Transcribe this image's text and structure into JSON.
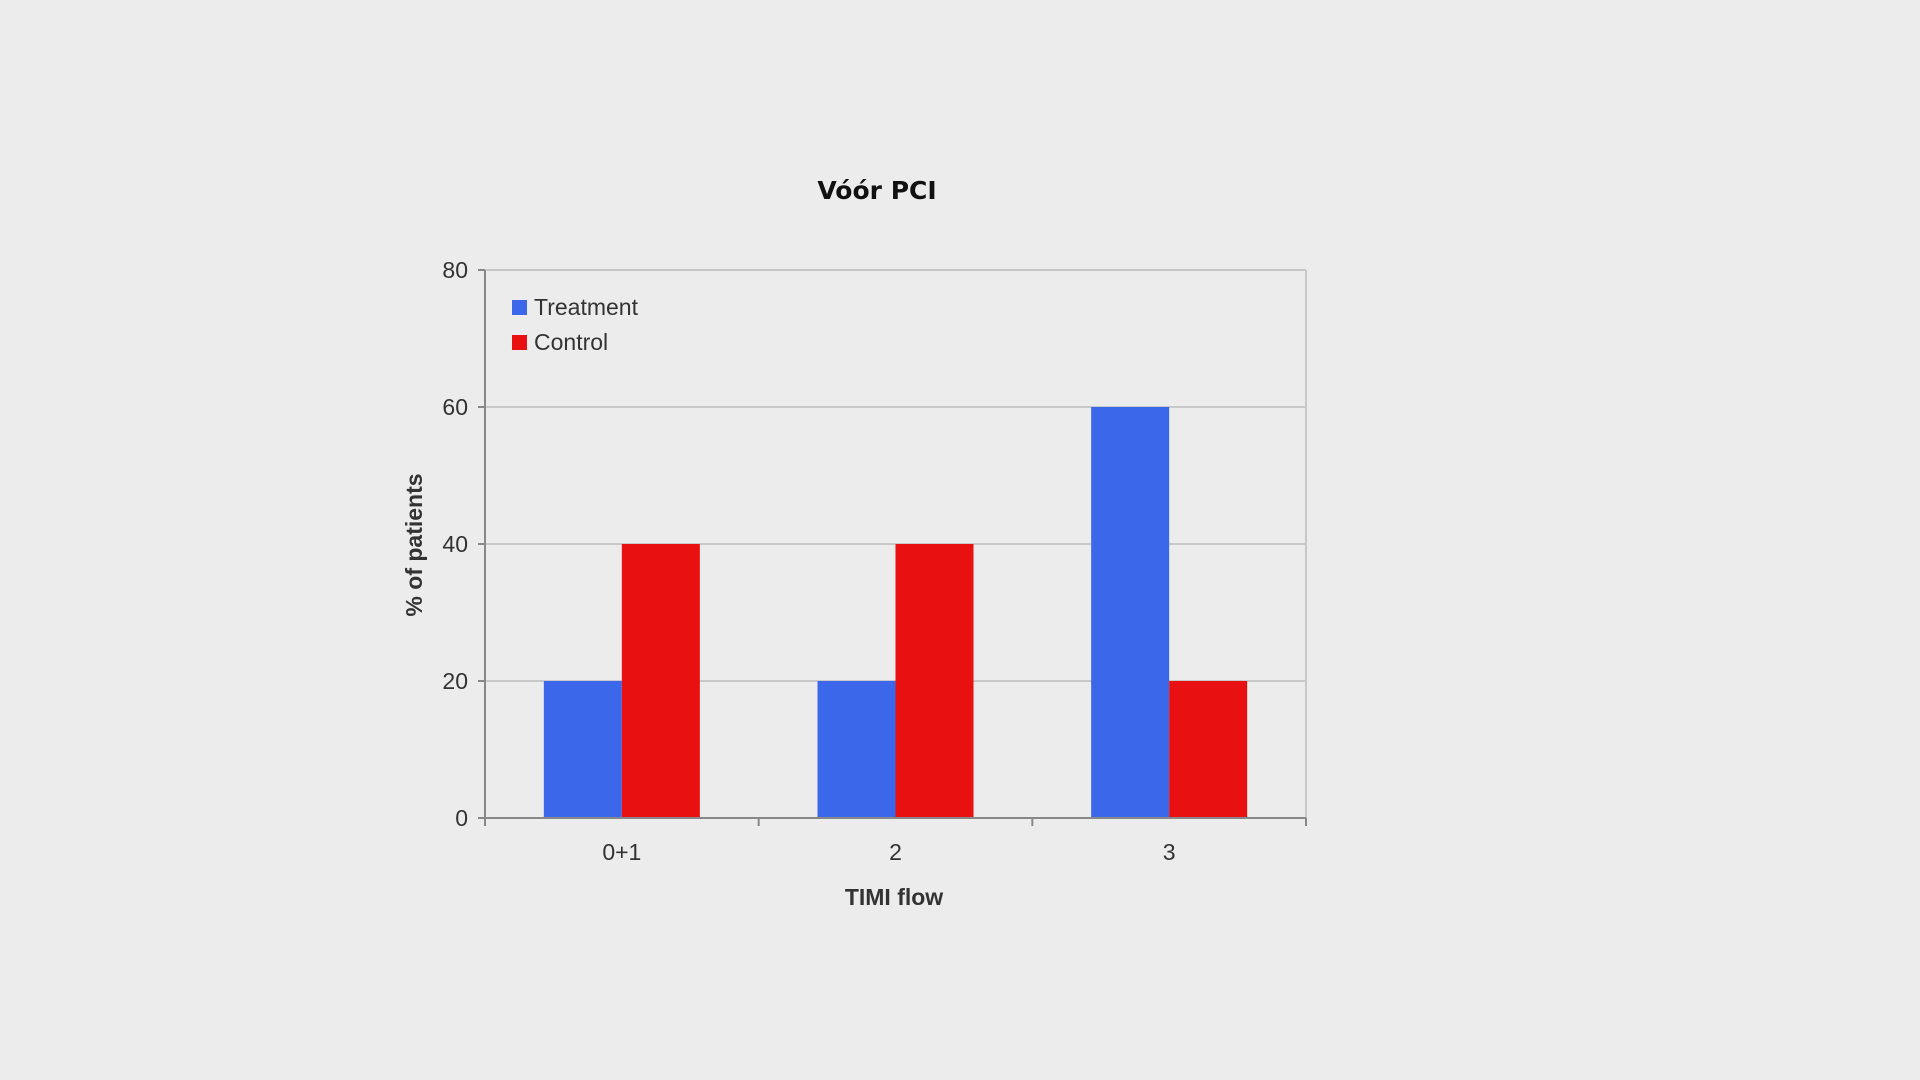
{
  "slide": {
    "title": "Vóór PCI"
  },
  "chart_data": {
    "type": "bar",
    "title": "",
    "xlabel": "TIMI flow",
    "ylabel": "% of patients",
    "categories": [
      "0+1",
      "2",
      "3"
    ],
    "series": [
      {
        "name": "Treatment",
        "color": "#3b67ea",
        "values": [
          20,
          20,
          60
        ]
      },
      {
        "name": "Control",
        "color": "#e81010",
        "values": [
          40,
          40,
          20
        ]
      }
    ],
    "ylim": [
      0,
      80
    ],
    "yticks": [
      0,
      20,
      40,
      60,
      80
    ],
    "grid": true,
    "legend": "top-left"
  }
}
